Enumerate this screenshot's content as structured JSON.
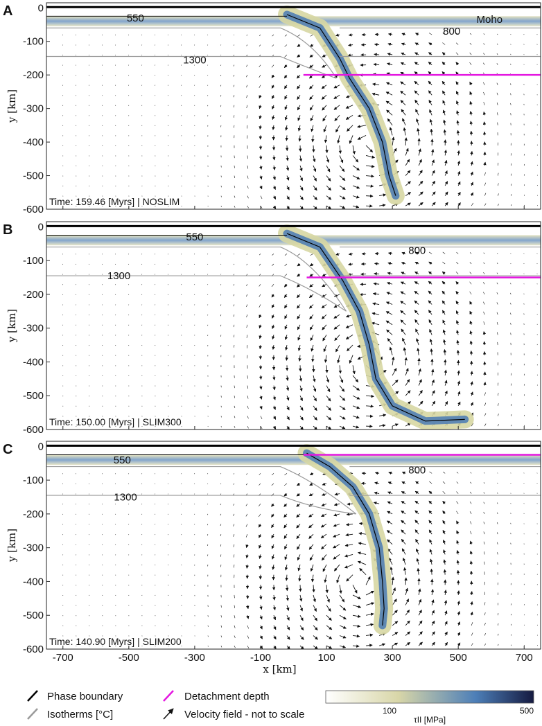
{
  "chart_data": [
    {
      "type": "field",
      "panel_label": "A",
      "time_text": "Time: 159.46 [Myrs] | NOSLIM",
      "xlim": [
        -750,
        750
      ],
      "ylim": [
        -600,
        15
      ],
      "x_ticks": [
        -700,
        -500,
        -300,
        -100,
        100,
        300,
        500,
        700
      ],
      "y_ticks": [
        0,
        -100,
        -200,
        -300,
        -400,
        -500,
        -600
      ],
      "ylabel": "y [km]",
      "detachment_depth": {
        "y": -200,
        "x_start": 30,
        "x_end": 750
      },
      "isotherm_labels": [
        {
          "text": "550",
          "x": -480,
          "y": -30
        },
        {
          "text": "800",
          "x": 480,
          "y": -70
        },
        {
          "text": "1300",
          "x": -300,
          "y": -155
        }
      ],
      "moho_label": {
        "text": "Moho",
        "x": 595,
        "y": -35
      }
    },
    {
      "type": "field",
      "panel_label": "B",
      "time_text": "Time: 150.00 [Myrs] | SLIM300",
      "xlim": [
        -750,
        750
      ],
      "ylim": [
        -600,
        15
      ],
      "x_ticks": [
        -700,
        -500,
        -300,
        -100,
        100,
        300,
        500,
        700
      ],
      "y_ticks": [
        0,
        -100,
        -200,
        -300,
        -400,
        -500,
        -600
      ],
      "ylabel": "y [km]",
      "detachment_depth": {
        "y": -150,
        "x_start": 40,
        "x_end": 750
      },
      "isotherm_labels": [
        {
          "text": "550",
          "x": -300,
          "y": -30
        },
        {
          "text": "800",
          "x": 375,
          "y": -70
        },
        {
          "text": "1300",
          "x": -530,
          "y": -145
        }
      ]
    },
    {
      "type": "field",
      "panel_label": "C",
      "time_text": "Time: 140.90 [Myrs] | SLIM200",
      "xlim": [
        -750,
        750
      ],
      "ylim": [
        -600,
        15
      ],
      "x_ticks": [
        -700,
        -500,
        -300,
        -100,
        100,
        300,
        500,
        700
      ],
      "y_ticks": [
        0,
        -100,
        -200,
        -300,
        -400,
        -500,
        -600
      ],
      "xlabel": "x [km]",
      "ylabel": "y [km]",
      "detachment_depth": {
        "y": -25,
        "x_start": 30,
        "x_end": 750
      },
      "isotherm_labels": [
        {
          "text": "550",
          "x": -520,
          "y": -40
        },
        {
          "text": "800",
          "x": 375,
          "y": -70
        },
        {
          "text": "1300",
          "x": -510,
          "y": -150
        }
      ]
    }
  ],
  "legend": {
    "phase_boundary": "Phase boundary",
    "isotherms": "Isotherms [°C]",
    "detachment_depth": "Detachment depth",
    "velocity_field": "Velocity field - not to scale"
  },
  "colorbar": {
    "label": "τII [MPa]",
    "ticks": [
      "100",
      "500"
    ],
    "colors": [
      "#ffffff",
      "#d8d6a8",
      "#4d7fb8",
      "#151a40"
    ]
  },
  "colors": {
    "detachment": "#e417e0",
    "isotherm": "#9a9a9a",
    "phase": "#000000",
    "stress_low": "#d7d7a3",
    "stress_high": "#4a7ab4"
  }
}
